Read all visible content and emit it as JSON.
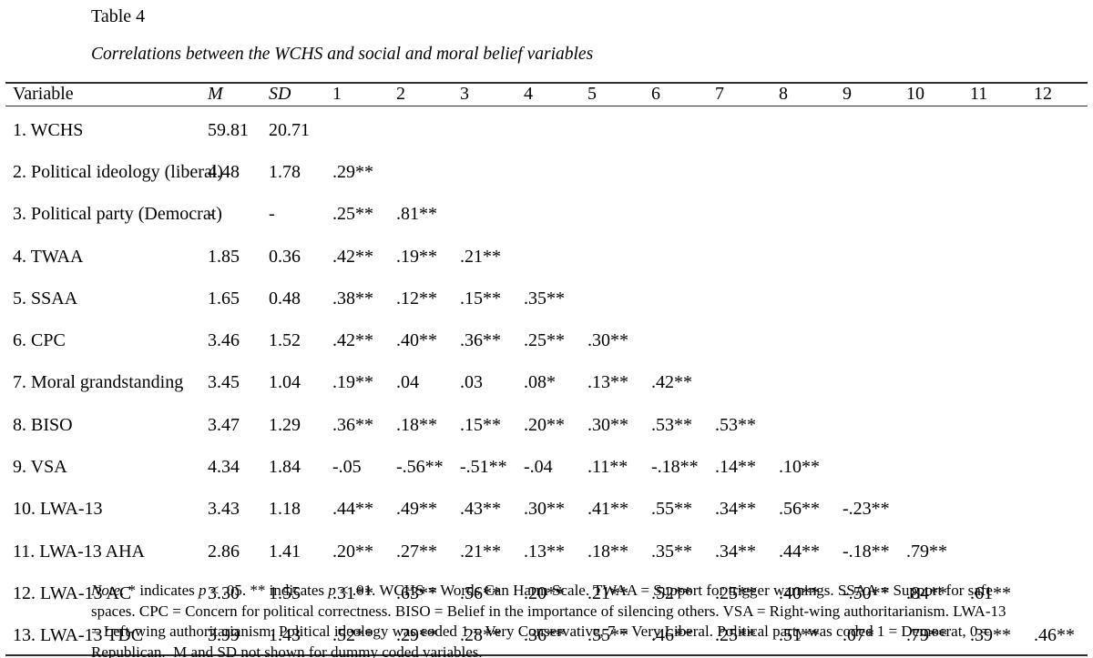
{
  "title": "Table 4",
  "subtitle": "Correlations between the WCHS and social and moral belief variables",
  "table": {
    "headers": [
      "Variable",
      "M",
      "SD",
      "1",
      "2",
      "3",
      "4",
      "5",
      "6",
      "7",
      "8",
      "9",
      "10",
      "11",
      "12"
    ],
    "rows": [
      {
        "variable": "1. WCHS",
        "m": "59.81",
        "sd": "20.71",
        "r": []
      },
      {
        "variable": "2. Political ideology (liberal)",
        "m": "4.48",
        "sd": "1.78",
        "r": [
          ".29**"
        ]
      },
      {
        "variable": "3. Political party (Democrat)",
        "m": "-",
        "sd": "-",
        "r": [
          ".25**",
          ".81**"
        ]
      },
      {
        "variable": "4. TWAA",
        "m": "1.85",
        "sd": "0.36",
        "r": [
          ".42**",
          ".19**",
          ".21**"
        ]
      },
      {
        "variable": "5. SSAA",
        "m": "1.65",
        "sd": "0.48",
        "r": [
          ".38**",
          ".12**",
          ".15**",
          ".35**"
        ]
      },
      {
        "variable": "6. CPC",
        "m": "3.46",
        "sd": "1.52",
        "r": [
          ".42**",
          ".40**",
          ".36**",
          ".25**",
          ".30**"
        ]
      },
      {
        "variable": "7. Moral grandstanding",
        "m": "3.45",
        "sd": "1.04",
        "r": [
          ".19**",
          ".04",
          ".03",
          ".08*",
          ".13**",
          ".42**"
        ]
      },
      {
        "variable": "8. BISO",
        "m": "3.47",
        "sd": "1.29",
        "r": [
          ".36**",
          ".18**",
          ".15**",
          ".20**",
          ".30**",
          ".53**",
          ".53**"
        ]
      },
      {
        "variable": "9. VSA",
        "m": "4.34",
        "sd": "1.84",
        "r": [
          "-.05",
          "-.56**",
          "-.51**",
          "-.04",
          ".11**",
          "-.18**",
          ".14**",
          ".10**"
        ]
      },
      {
        "variable": "10. LWA-13",
        "m": "3.43",
        "sd": "1.18",
        "r": [
          ".44**",
          ".49**",
          ".43**",
          ".30**",
          ".41**",
          ".55**",
          ".34**",
          ".56**",
          "-.23**"
        ]
      },
      {
        "variable": "11. LWA-13 AHA",
        "m": "2.86",
        "sd": "1.41",
        "r": [
          ".20**",
          ".27**",
          ".21**",
          ".13**",
          ".18**",
          ".35**",
          ".34**",
          ".44**",
          "-.18**",
          ".79**"
        ]
      },
      {
        "variable": "12. LWA-13 AC",
        "m": "3.30",
        "sd": "1.55",
        "r": [
          ".31**",
          ".63**",
          ".56**",
          ".20**",
          ".21**",
          ".52**",
          ".25**",
          ".40**",
          "-.50**",
          ".84**",
          ".61**"
        ]
      },
      {
        "variable": "13. LWA-13 TDC",
        "m": "3.99",
        "sd": "1.43",
        "r": [
          ".52**",
          ".29**",
          ".28**",
          ".36**",
          ".55**",
          ".46**",
          ".25**",
          ".51**",
          ".07*",
          ".79**",
          ".39**",
          ".46**"
        ]
      }
    ]
  },
  "note": {
    "parts": [
      {
        "text": "Note.",
        "italic": true
      },
      {
        "text": " * indicates ",
        "italic": false
      },
      {
        "text": "p",
        "italic": true
      },
      {
        "text": " < .05. ** indicates ",
        "italic": false
      },
      {
        "text": "p",
        "italic": true
      },
      {
        "text": " < .01. WCHS = Words Can Harm Scale. TWAA = Support for trigger warnings. SSAA = Support for safe spaces. CPC = Concern for political correctness. BISO = Belief in the importance of silencing others. VSA = Right-wing authoritarianism. LWA-13 = Left-wing authoritarianism. Political ideology was coded 1 = Very Conservative, 7 = Very Liberal. Political party was coded 1 = Democrat, 0 = Republican.  M and SD not shown for dummy coded variables.",
        "italic": false
      }
    ]
  }
}
